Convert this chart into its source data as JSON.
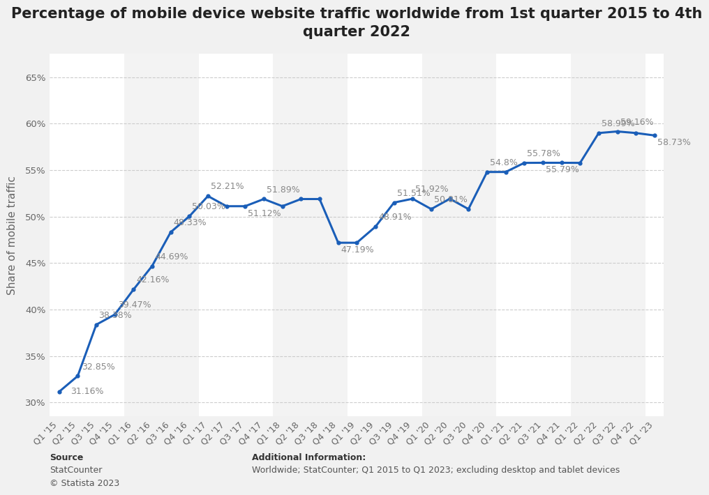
{
  "title_line1": "Percentage of mobile device website traffic worldwide from 1st quarter 2015 to 4th",
  "title_line2": "quarter 2022",
  "ylabel": "Share of mobile traffic",
  "background_color": "#f1f1f1",
  "plot_background_color": "#ffffff",
  "line_color": "#1a5eb8",
  "line_width": 2.2,
  "quarters": [
    "Q1 '15",
    "Q2 '15",
    "Q3 '15",
    "Q4 '15",
    "Q1 '16",
    "Q2 '16",
    "Q3 '16",
    "Q4 '16",
    "Q1 '17",
    "Q2 '17",
    "Q3 '17",
    "Q4 '17",
    "Q1 '18",
    "Q2 '18",
    "Q3 '18",
    "Q4 '18",
    "Q1 '19",
    "Q2 '19",
    "Q3 '19",
    "Q4 '19",
    "Q1 '20",
    "Q2 '20",
    "Q3 '20",
    "Q4 '20",
    "Q1 '21",
    "Q2 '21",
    "Q3 '21",
    "Q4 '21",
    "Q1 '22",
    "Q2 '22",
    "Q3 '22",
    "Q4 '22",
    "Q1 '23"
  ],
  "values": [
    31.16,
    32.85,
    38.38,
    39.47,
    42.16,
    44.69,
    48.33,
    50.03,
    52.21,
    51.12,
    51.12,
    51.89,
    51.12,
    51.89,
    51.89,
    47.19,
    47.19,
    48.91,
    51.51,
    51.92,
    50.81,
    51.92,
    50.81,
    54.8,
    54.8,
    55.78,
    55.79,
    55.79,
    55.78,
    58.99,
    59.16,
    58.99,
    58.73
  ],
  "annotations": {
    "0": {
      "label": "31.16%",
      "xoff": 12,
      "yoff": -4
    },
    "1": {
      "label": "32.85%",
      "xoff": 4,
      "yoff": 5
    },
    "2": {
      "label": "38.38%",
      "xoff": 2,
      "yoff": 5
    },
    "3": {
      "label": "39.47%",
      "xoff": 3,
      "yoff": 5
    },
    "4": {
      "label": "42.16%",
      "xoff": 3,
      "yoff": 5
    },
    "5": {
      "label": "44.69%",
      "xoff": 3,
      "yoff": 5
    },
    "6": {
      "label": "48.33%",
      "xoff": 3,
      "yoff": 5
    },
    "7": {
      "label": "50.03%",
      "xoff": 3,
      "yoff": 5
    },
    "8": {
      "label": "52.21%",
      "xoff": 3,
      "yoff": 5
    },
    "10": {
      "label": "51.12%",
      "xoff": 3,
      "yoff": -12
    },
    "11": {
      "label": "51.89%",
      "xoff": 3,
      "yoff": 5
    },
    "15": {
      "label": "47.19%",
      "xoff": 3,
      "yoff": -12
    },
    "17": {
      "label": "48.91%",
      "xoff": 3,
      "yoff": 5
    },
    "18": {
      "label": "51.51%",
      "xoff": 3,
      "yoff": 5
    },
    "19": {
      "label": "51.92%",
      "xoff": 3,
      "yoff": 5
    },
    "20": {
      "label": "50.81%",
      "xoff": 3,
      "yoff": 5
    },
    "23": {
      "label": "54.8%",
      "xoff": 3,
      "yoff": 5
    },
    "25": {
      "label": "55.78%",
      "xoff": 3,
      "yoff": 5
    },
    "26": {
      "label": "55.79%",
      "xoff": 3,
      "yoff": -12
    },
    "29": {
      "label": "58.99%",
      "xoff": 3,
      "yoff": 5
    },
    "30": {
      "label": "59.16%",
      "xoff": 3,
      "yoff": 5
    },
    "32": {
      "label": "58.73%",
      "xoff": 3,
      "yoff": -12
    }
  },
  "yticks": [
    30,
    35,
    40,
    45,
    50,
    55,
    60,
    65
  ],
  "ylim": [
    28.5,
    67.5
  ],
  "source_text": "Source",
  "source_body": "StatCounter\n© Statista 2023",
  "additional_title": "Additional Information:",
  "additional_body": "Worldwide; StatCounter; Q1 2015 to Q1 2023; excluding desktop and tablet devices",
  "title_fontsize": 15,
  "axis_label_fontsize": 11,
  "tick_fontsize": 9.5,
  "annotation_fontsize": 9,
  "footer_fontsize": 9
}
